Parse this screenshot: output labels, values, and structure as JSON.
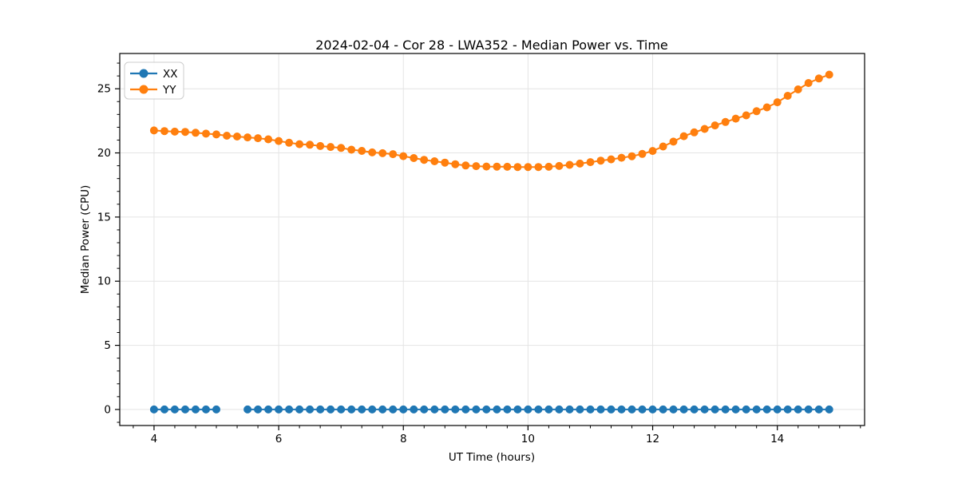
{
  "figure": {
    "title": "2024-02-04 - Cor 28 - LWA352 - Median Power vs. Time",
    "xlabel": "UT Time (hours)",
    "ylabel": "Median Power (CPU)"
  },
  "legend": {
    "entries": [
      {
        "label": "XX",
        "color": "#1f77b4"
      },
      {
        "label": "YY",
        "color": "#ff7f0e"
      }
    ]
  },
  "chart_data": {
    "type": "line",
    "title": "2024-02-04 - Cor 28 - LWA352 - Median Power vs. Time",
    "xlabel": "UT Time (hours)",
    "ylabel": "Median Power (CPU)",
    "xlim": [
      3.45,
      15.4
    ],
    "ylim": [
      -1.25,
      27.75
    ],
    "xticks": [
      4,
      6,
      8,
      10,
      12,
      14
    ],
    "yticks": [
      0,
      5,
      10,
      15,
      20,
      25
    ],
    "x_minor_step": 0.33333,
    "y_minor_step": 1,
    "grid": true,
    "grid_color": "#e4e4e4",
    "background": "#ffffff",
    "legend_position": "upper-left",
    "marker": "circle",
    "marker_radius": 5,
    "line_width": 2,
    "series": [
      {
        "name": "XX",
        "color": "#1f77b4",
        "x": [
          4.0,
          4.167,
          4.333,
          4.5,
          4.667,
          4.833,
          5.0,
          5.5,
          5.667,
          5.833,
          6.0,
          6.167,
          6.333,
          6.5,
          6.667,
          6.833,
          7.0,
          7.167,
          7.333,
          7.5,
          7.667,
          7.833,
          8.0,
          8.167,
          8.333,
          8.5,
          8.667,
          8.833,
          9.0,
          9.167,
          9.333,
          9.5,
          9.667,
          9.833,
          10.0,
          10.167,
          10.333,
          10.5,
          10.667,
          10.833,
          11.0,
          11.167,
          11.333,
          11.5,
          11.667,
          11.833,
          12.0,
          12.167,
          12.333,
          12.5,
          12.667,
          12.833,
          13.0,
          13.167,
          13.333,
          13.5,
          13.667,
          13.833,
          14.0,
          14.167,
          14.333,
          14.5,
          14.667,
          14.833
        ],
        "y": [
          0,
          0,
          0,
          0,
          0,
          0,
          0,
          0,
          0,
          0,
          0,
          0,
          0,
          0,
          0,
          0,
          0,
          0,
          0,
          0,
          0,
          0,
          0,
          0,
          0,
          0,
          0,
          0,
          0,
          0,
          0,
          0,
          0,
          0,
          0,
          0,
          0,
          0,
          0,
          0,
          0,
          0,
          0,
          0,
          0,
          0,
          0,
          0,
          0,
          0,
          0,
          0,
          0,
          0,
          0,
          0,
          0,
          0,
          0,
          0,
          0,
          0,
          0,
          0
        ],
        "gap_note": "no data between 5.0 and 5.5"
      },
      {
        "name": "YY",
        "color": "#ff7f0e",
        "x": [
          4.0,
          4.167,
          4.333,
          4.5,
          4.667,
          4.833,
          5.0,
          5.167,
          5.333,
          5.5,
          5.667,
          5.833,
          6.0,
          6.167,
          6.333,
          6.5,
          6.667,
          6.833,
          7.0,
          7.167,
          7.333,
          7.5,
          7.667,
          7.833,
          8.0,
          8.167,
          8.333,
          8.5,
          8.667,
          8.833,
          9.0,
          9.167,
          9.333,
          9.5,
          9.667,
          9.833,
          10.0,
          10.167,
          10.333,
          10.5,
          10.667,
          10.833,
          11.0,
          11.167,
          11.333,
          11.5,
          11.667,
          11.833,
          12.0,
          12.167,
          12.333,
          12.5,
          12.667,
          12.833,
          13.0,
          13.167,
          13.333,
          13.5,
          13.667,
          13.833,
          14.0,
          14.167,
          14.333,
          14.5,
          14.667,
          14.833
        ],
        "y": [
          21.75,
          21.7,
          21.66,
          21.64,
          21.57,
          21.5,
          21.44,
          21.34,
          21.28,
          21.21,
          21.15,
          21.06,
          20.93,
          20.79,
          20.68,
          20.64,
          20.54,
          20.46,
          20.39,
          20.25,
          20.16,
          20.04,
          19.98,
          19.9,
          19.75,
          19.6,
          19.46,
          19.35,
          19.24,
          19.12,
          19.02,
          18.97,
          18.94,
          18.93,
          18.92,
          18.9,
          18.9,
          18.9,
          18.92,
          18.98,
          19.07,
          19.17,
          19.28,
          19.4,
          19.5,
          19.62,
          19.74,
          19.92,
          20.15,
          20.5,
          20.88,
          21.3,
          21.6,
          21.87,
          22.14,
          22.41,
          22.67,
          22.93,
          23.25,
          23.55,
          23.95,
          24.45,
          24.95,
          25.45,
          25.8,
          26.1
        ]
      }
    ]
  }
}
